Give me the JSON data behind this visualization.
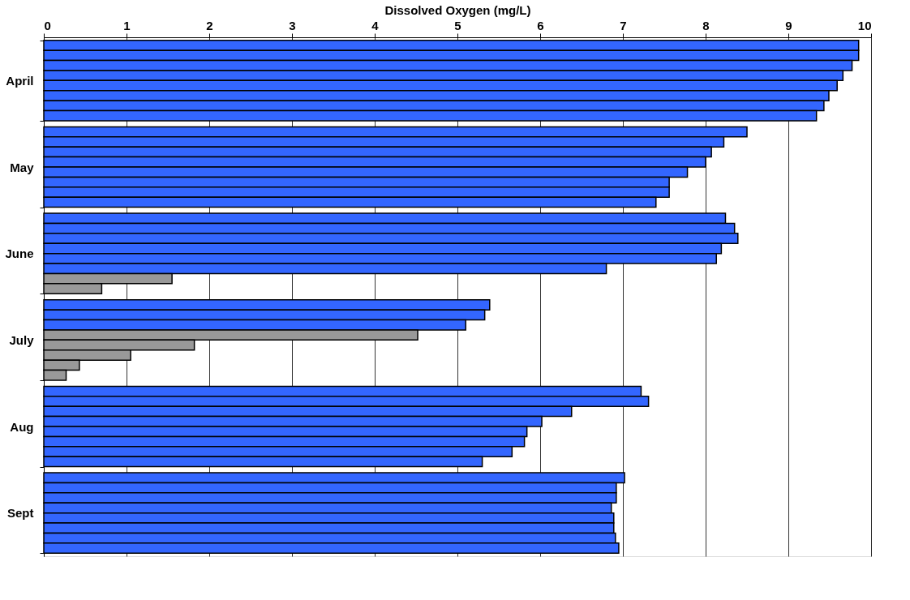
{
  "chart_data": {
    "type": "bar",
    "orientation": "horizontal",
    "xlabel": "Dissolved Oxygen (mg/L)",
    "categories": [
      "April",
      "May",
      "June",
      "July",
      "Aug",
      "Sept"
    ],
    "series": [
      {
        "colors": [
          "#3366ff",
          "#3366ff",
          "#3366ff",
          "#3366ff",
          "#3366ff",
          "#3366ff"
        ],
        "values": [
          9.85,
          8.5,
          8.24,
          5.39,
          7.22,
          7.02
        ]
      },
      {
        "colors": [
          "#3366ff",
          "#3366ff",
          "#3366ff",
          "#3366ff",
          "#3366ff",
          "#3366ff"
        ],
        "values": [
          9.85,
          8.22,
          8.35,
          5.33,
          7.31,
          6.92
        ]
      },
      {
        "colors": [
          "#3366ff",
          "#3366ff",
          "#3366ff",
          "#3366ff",
          "#3366ff",
          "#3366ff"
        ],
        "values": [
          9.77,
          8.07,
          8.39,
          5.1,
          6.38,
          6.92
        ]
      },
      {
        "colors": [
          "#3366ff",
          "#3366ff",
          "#3366ff",
          "#999999",
          "#3366ff",
          "#3366ff"
        ],
        "values": [
          9.66,
          8.0,
          8.19,
          4.52,
          6.02,
          6.86
        ]
      },
      {
        "colors": [
          "#3366ff",
          "#3366ff",
          "#3366ff",
          "#999999",
          "#3366ff",
          "#3366ff"
        ],
        "values": [
          9.59,
          7.78,
          8.13,
          1.82,
          5.84,
          6.89
        ]
      },
      {
        "colors": [
          "#3366ff",
          "#3366ff",
          "#3366ff",
          "#999999",
          "#3366ff",
          "#3366ff"
        ],
        "values": [
          9.49,
          7.56,
          6.8,
          1.05,
          5.81,
          6.89
        ]
      },
      {
        "colors": [
          "#3366ff",
          "#3366ff",
          "#999999",
          "#999999",
          "#3366ff",
          "#3366ff"
        ],
        "values": [
          9.43,
          7.56,
          1.55,
          0.43,
          5.66,
          6.91
        ]
      },
      {
        "colors": [
          "#3366ff",
          "#3366ff",
          "#999999",
          "#999999",
          "#3366ff",
          "#3366ff"
        ],
        "values": [
          9.34,
          7.4,
          0.7,
          0.27,
          5.3,
          6.95
        ]
      }
    ],
    "xlim": [
      0,
      10
    ],
    "xticks": [
      0,
      1,
      2,
      3,
      4,
      5,
      6,
      7,
      8,
      9,
      10
    ],
    "grid": "x"
  }
}
